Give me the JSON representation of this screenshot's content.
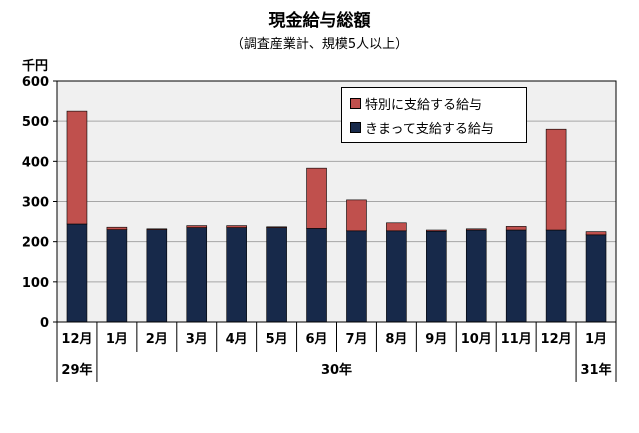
{
  "title": "現金給与総額",
  "subtitle": "（調査産業計、規模5人以上）",
  "unit": "千円",
  "colors": {
    "special": "#C0504D",
    "regular": "#17294A",
    "plot_bg": "#F0F0F0",
    "grid": "#A6A6A6"
  },
  "legend": {
    "special": "特別に支給する給与",
    "regular": "きまって支給する給与"
  },
  "chart_data": {
    "type": "bar",
    "stacked": true,
    "title": "現金給与総額",
    "subtitle": "（調査産業計、規模5人以上）",
    "ylabel": "千円",
    "ylim": [
      0,
      600
    ],
    "yticks": [
      0,
      100,
      200,
      300,
      400,
      500,
      600
    ],
    "categories": [
      "12月",
      "1月",
      "2月",
      "3月",
      "4月",
      "5月",
      "6月",
      "7月",
      "8月",
      "9月",
      "10月",
      "11月",
      "12月",
      "1月"
    ],
    "year_groups": [
      {
        "label": "29年",
        "count": 1
      },
      {
        "label": "30年",
        "count": 12
      },
      {
        "label": "31年",
        "count": 1
      }
    ],
    "series": [
      {
        "name": "きまって支給する給与",
        "values": [
          244,
          230,
          230,
          235,
          235,
          235,
          233,
          227,
          227,
          226,
          229,
          229,
          229,
          217
        ]
      },
      {
        "name": "特別に支給する給与",
        "values": [
          281,
          6,
          2,
          5,
          5,
          2,
          150,
          77,
          20,
          3,
          3,
          9,
          251,
          8
        ]
      }
    ],
    "grid": true,
    "legend_position": "top-right"
  }
}
